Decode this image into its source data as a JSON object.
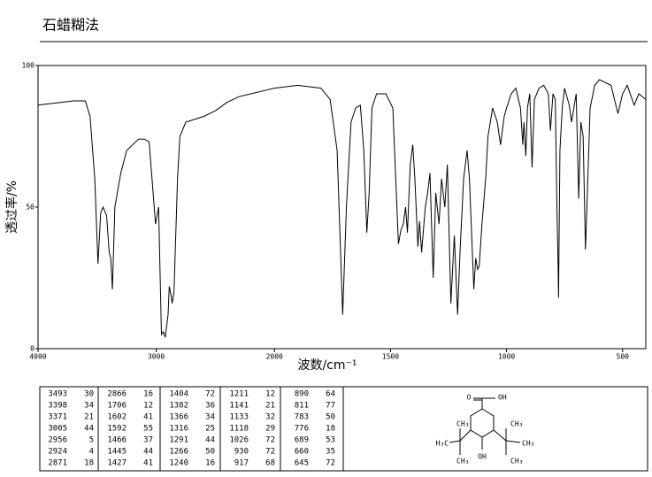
{
  "header": {
    "title": "石蜡糊法"
  },
  "chart_data": {
    "type": "line",
    "x_label": "波数/cm⁻¹",
    "y_label": "透过率/%",
    "xlim": [
      4000,
      400
    ],
    "x_scale_break": 2000,
    "xticks": [
      4000,
      3000,
      2000,
      1500,
      1000,
      500
    ],
    "ylim": [
      0,
      100
    ],
    "yticks": [
      0,
      50,
      100
    ],
    "series": [
      {
        "color": "#000000",
        "x": [
          4000,
          3700,
          3600,
          3560,
          3520,
          3493,
          3470,
          3450,
          3420,
          3398,
          3385,
          3371,
          3350,
          3300,
          3250,
          3150,
          3100,
          3060,
          3006,
          2980,
          2956,
          2940,
          2924,
          2900,
          2890,
          2871,
          2866,
          2850,
          2820,
          2800,
          2750,
          2600,
          2500,
          2400,
          2300,
          2200,
          2100,
          2000,
          1900,
          1800,
          1760,
          1730,
          1706,
          1690,
          1670,
          1650,
          1630,
          1615,
          1602,
          1592,
          1580,
          1560,
          1520,
          1490,
          1466,
          1455,
          1445,
          1435,
          1427,
          1415,
          1404,
          1395,
          1382,
          1375,
          1366,
          1350,
          1340,
          1330,
          1316,
          1305,
          1291,
          1280,
          1266,
          1255,
          1240,
          1225,
          1211,
          1200,
          1185,
          1170,
          1160,
          1141,
          1133,
          1125,
          1118,
          1105,
          1090,
          1080,
          1060,
          1040,
          1026,
          1010,
          1000,
          980,
          960,
          940,
          930,
          925,
          917,
          910,
          900,
          890,
          880,
          860,
          840,
          820,
          811,
          800,
          790,
          783,
          778,
          776,
          770,
          760,
          750,
          730,
          720,
          700,
          689,
          680,
          670,
          660,
          645,
          640,
          620,
          600,
          550,
          520,
          500,
          480,
          450,
          430,
          400
        ],
        "values": [
          86,
          87.5,
          87.5,
          82,
          60,
          30,
          48,
          50,
          47,
          34,
          32,
          21,
          50,
          62,
          70,
          74,
          74,
          73,
          44,
          50,
          5,
          6,
          4,
          12,
          22,
          18,
          16,
          20,
          60,
          75,
          80,
          82,
          84,
          87,
          89,
          90,
          91,
          92,
          93,
          92,
          88,
          70,
          12,
          50,
          80,
          85,
          86,
          70,
          41,
          55,
          85,
          90,
          90,
          85,
          37,
          42,
          44,
          50,
          41,
          65,
          72,
          60,
          36,
          45,
          34,
          50,
          55,
          62,
          25,
          55,
          44,
          60,
          50,
          65,
          16,
          40,
          12,
          35,
          60,
          70,
          60,
          21,
          32,
          28,
          29,
          45,
          60,
          75,
          85,
          80,
          72,
          82,
          85,
          90,
          92,
          85,
          72,
          80,
          68,
          85,
          90,
          64,
          88,
          92,
          93,
          90,
          77,
          90,
          88,
          50,
          30,
          18,
          70,
          85,
          92,
          86,
          80,
          90,
          53,
          80,
          75,
          35,
          72,
          85,
          93,
          95,
          93,
          83,
          90,
          93,
          86,
          90,
          88
        ]
      }
    ]
  },
  "peak_table": [
    {
      "wavenumbers": [
        3493,
        3398,
        3371,
        3005,
        2956,
        2924,
        2871
      ],
      "transmittance": [
        30,
        34,
        21,
        44,
        5,
        4,
        18
      ]
    },
    {
      "wavenumbers": [
        2866,
        1706,
        1602,
        1592,
        1466,
        1445,
        1427
      ],
      "transmittance": [
        16,
        12,
        41,
        55,
        37,
        44,
        41
      ]
    },
    {
      "wavenumbers": [
        1404,
        1382,
        1366,
        1316,
        1291,
        1266,
        1240
      ],
      "transmittance": [
        72,
        36,
        34,
        25,
        44,
        50,
        16
      ]
    },
    {
      "wavenumbers": [
        1211,
        1141,
        1133,
        1118,
        1026,
        930,
        917
      ],
      "transmittance": [
        12,
        21,
        32,
        29,
        72,
        72,
        68
      ]
    },
    {
      "wavenumbers": [
        890,
        811,
        783,
        776,
        689,
        660,
        645
      ],
      "transmittance": [
        64,
        77,
        50,
        18,
        53,
        35,
        72
      ]
    }
  ],
  "structure": {
    "labels": [
      "O",
      "OH",
      "CH₃",
      "H₃C",
      "CH₃",
      "CH₃",
      "CH₃",
      "CH₃",
      "OH"
    ]
  }
}
